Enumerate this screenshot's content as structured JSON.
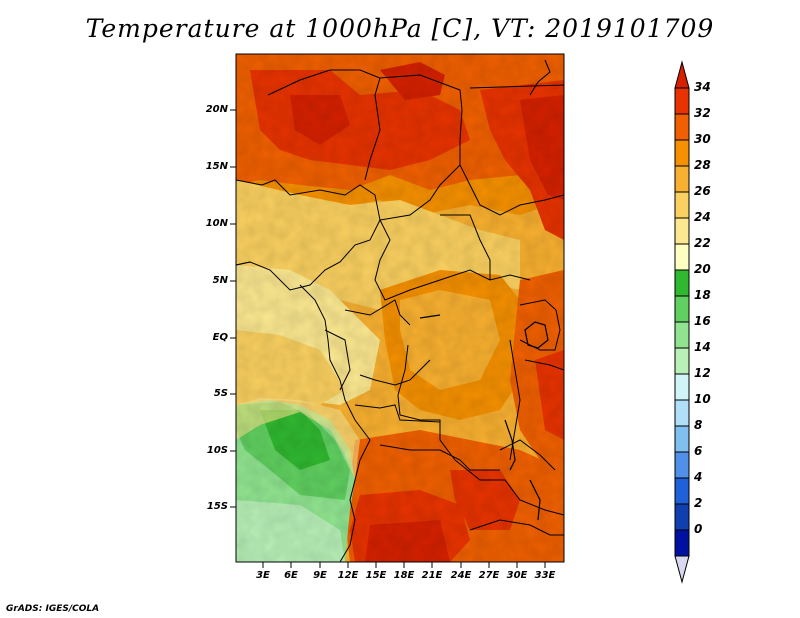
{
  "title": "Temperature at 1000hPa [C], VT: 2019101709",
  "lat_labels": [
    "20N",
    "15N",
    "10N",
    "5N",
    "EQ",
    "5S",
    "10S",
    "15S"
  ],
  "lon_labels": [
    "3E",
    "6E",
    "9E",
    "12E",
    "15E",
    "18E",
    "21E",
    "24E",
    "27E",
    "30E",
    "33E"
  ],
  "colorbar": {
    "labels": [
      "34",
      "32",
      "30",
      "28",
      "26",
      "24",
      "22",
      "20",
      "18",
      "16",
      "14",
      "12",
      "10",
      "8",
      "6",
      "4",
      "2",
      "0"
    ],
    "colors": [
      "#d52100",
      "#e83300",
      "#f06000",
      "#f59000",
      "#f8b030",
      "#fad060",
      "#fbe890",
      "#fefec0",
      "#30b830",
      "#60d060",
      "#90e490",
      "#b8f0b8",
      "#d0f4f8",
      "#b0e0f8",
      "#80c0f0",
      "#5090e8",
      "#2060d8",
      "#1040b0",
      "#0010a0",
      "#100070"
    ]
  },
  "credit": "GrADS: IGES/COLA"
}
